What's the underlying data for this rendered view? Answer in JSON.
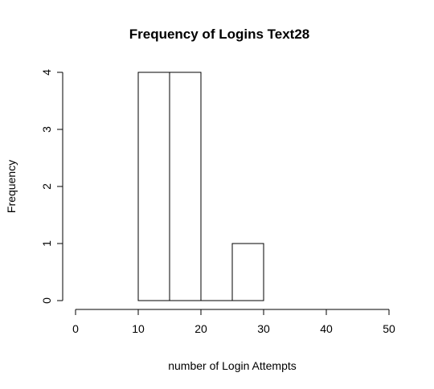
{
  "chart_data": {
    "type": "bar",
    "title": "Frequency of Logins  Text28",
    "xlabel": "number of Login Attempts",
    "ylabel": "Frequency",
    "xlim": [
      0,
      50
    ],
    "ylim": [
      0,
      4
    ],
    "x_ticks": [
      0,
      10,
      20,
      30,
      40,
      50
    ],
    "y_ticks": [
      0,
      1,
      2,
      3,
      4
    ],
    "bins": [
      {
        "start": 10,
        "end": 15,
        "count": 4
      },
      {
        "start": 15,
        "end": 20,
        "count": 4
      },
      {
        "start": 20,
        "end": 25,
        "count": 0
      },
      {
        "start": 25,
        "end": 30,
        "count": 1
      }
    ],
    "grid": false,
    "colors": {
      "bar_fill": "#ffffff",
      "bar_stroke": "#000000"
    }
  }
}
